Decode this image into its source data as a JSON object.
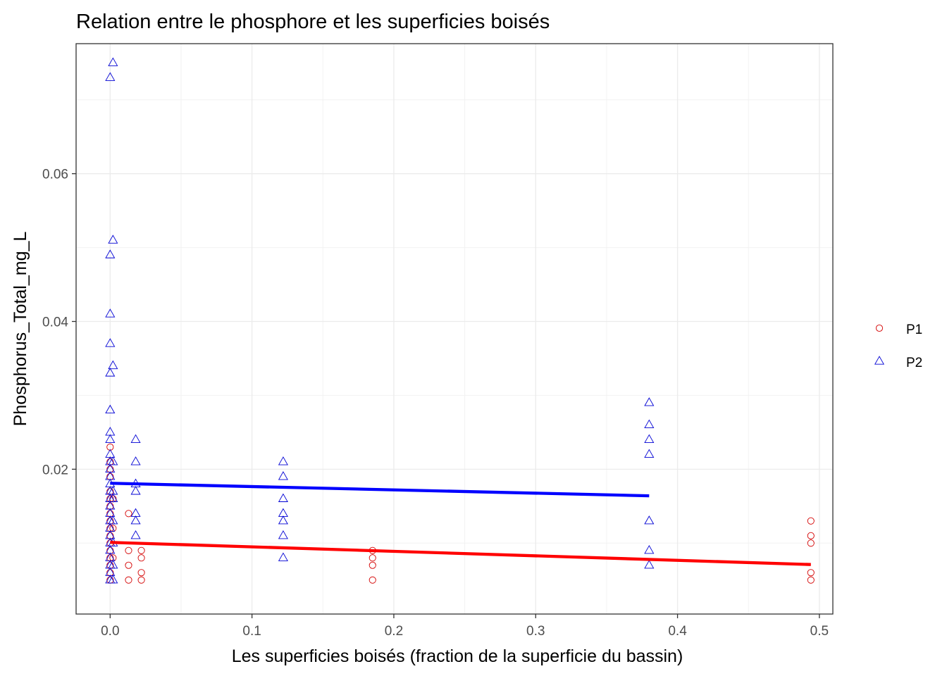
{
  "chart_data": {
    "type": "scatter",
    "title": "Relation entre le phosphore et les superficies boisés",
    "xlabel": "Les superficies boisés (fraction de la superficie du bassin)",
    "ylabel": "Phosphorus_Total_mg_L",
    "xlim": [
      -0.024,
      0.5095
    ],
    "ylim": [
      0.0004,
      0.0776
    ],
    "x_ticks": [
      0.0,
      0.1,
      0.2,
      0.3,
      0.4,
      0.5
    ],
    "x_tick_labels": [
      "0.0",
      "0.1",
      "0.2",
      "0.3",
      "0.4",
      "0.5"
    ],
    "y_ticks": [
      0.02,
      0.04,
      0.06
    ],
    "y_tick_labels": [
      "0.02",
      "0.04",
      "0.06"
    ],
    "grid": true,
    "legend_position": "right",
    "series": [
      {
        "name": "P1",
        "marker": "circle",
        "color": "#d40000",
        "points": [
          [
            0.0,
            0.023
          ],
          [
            0.0,
            0.021
          ],
          [
            0.0,
            0.02
          ],
          [
            0.0,
            0.019
          ],
          [
            0.0,
            0.017
          ],
          [
            0.0,
            0.016
          ],
          [
            0.0,
            0.015
          ],
          [
            0.0,
            0.014
          ],
          [
            0.0,
            0.013
          ],
          [
            0.0,
            0.012
          ],
          [
            0.0,
            0.011
          ],
          [
            0.0,
            0.01
          ],
          [
            0.0,
            0.009
          ],
          [
            0.0,
            0.008
          ],
          [
            0.0,
            0.007
          ],
          [
            0.0,
            0.006
          ],
          [
            0.0,
            0.005
          ],
          [
            0.002,
            0.016
          ],
          [
            0.002,
            0.012
          ],
          [
            0.002,
            0.008
          ],
          [
            0.013,
            0.014
          ],
          [
            0.013,
            0.009
          ],
          [
            0.013,
            0.007
          ],
          [
            0.013,
            0.005
          ],
          [
            0.022,
            0.009
          ],
          [
            0.022,
            0.008
          ],
          [
            0.022,
            0.006
          ],
          [
            0.022,
            0.005
          ],
          [
            0.185,
            0.009
          ],
          [
            0.185,
            0.008
          ],
          [
            0.185,
            0.007
          ],
          [
            0.185,
            0.005
          ],
          [
            0.494,
            0.013
          ],
          [
            0.494,
            0.011
          ],
          [
            0.494,
            0.01
          ],
          [
            0.494,
            0.006
          ],
          [
            0.494,
            0.005
          ]
        ],
        "trend": {
          "x": [
            0.0,
            0.494
          ],
          "y": [
            0.0101,
            0.0071
          ],
          "color": "#ff0000"
        }
      },
      {
        "name": "P2",
        "marker": "triangle",
        "color": "#0000d4",
        "points": [
          [
            0.0,
            0.073
          ],
          [
            0.002,
            0.075
          ],
          [
            0.0,
            0.049
          ],
          [
            0.002,
            0.051
          ],
          [
            0.0,
            0.041
          ],
          [
            0.0,
            0.037
          ],
          [
            0.002,
            0.034
          ],
          [
            0.0,
            0.033
          ],
          [
            0.0,
            0.028
          ],
          [
            0.0,
            0.025
          ],
          [
            0.0,
            0.024
          ],
          [
            0.0,
            0.022
          ],
          [
            0.0,
            0.021
          ],
          [
            0.002,
            0.021
          ],
          [
            0.0,
            0.02
          ],
          [
            0.0,
            0.019
          ],
          [
            0.0,
            0.018
          ],
          [
            0.0,
            0.017
          ],
          [
            0.002,
            0.017
          ],
          [
            0.0,
            0.016
          ],
          [
            0.002,
            0.016
          ],
          [
            0.0,
            0.015
          ],
          [
            0.0,
            0.014
          ],
          [
            0.0,
            0.013
          ],
          [
            0.002,
            0.013
          ],
          [
            0.0,
            0.012
          ],
          [
            0.0,
            0.011
          ],
          [
            0.0,
            0.01
          ],
          [
            0.002,
            0.01
          ],
          [
            0.0,
            0.009
          ],
          [
            0.0,
            0.008
          ],
          [
            0.0,
            0.007
          ],
          [
            0.002,
            0.007
          ],
          [
            0.0,
            0.006
          ],
          [
            0.0,
            0.005
          ],
          [
            0.002,
            0.005
          ],
          [
            0.018,
            0.024
          ],
          [
            0.018,
            0.021
          ],
          [
            0.018,
            0.018
          ],
          [
            0.018,
            0.017
          ],
          [
            0.018,
            0.014
          ],
          [
            0.018,
            0.013
          ],
          [
            0.018,
            0.011
          ],
          [
            0.122,
            0.021
          ],
          [
            0.122,
            0.019
          ],
          [
            0.122,
            0.016
          ],
          [
            0.122,
            0.014
          ],
          [
            0.122,
            0.013
          ],
          [
            0.122,
            0.011
          ],
          [
            0.122,
            0.008
          ],
          [
            0.38,
            0.029
          ],
          [
            0.38,
            0.026
          ],
          [
            0.38,
            0.024
          ],
          [
            0.38,
            0.022
          ],
          [
            0.38,
            0.013
          ],
          [
            0.38,
            0.009
          ],
          [
            0.38,
            0.007
          ]
        ],
        "trend": {
          "x": [
            0.0,
            0.38
          ],
          "y": [
            0.0181,
            0.0164
          ],
          "color": "#0000ff"
        }
      }
    ]
  }
}
